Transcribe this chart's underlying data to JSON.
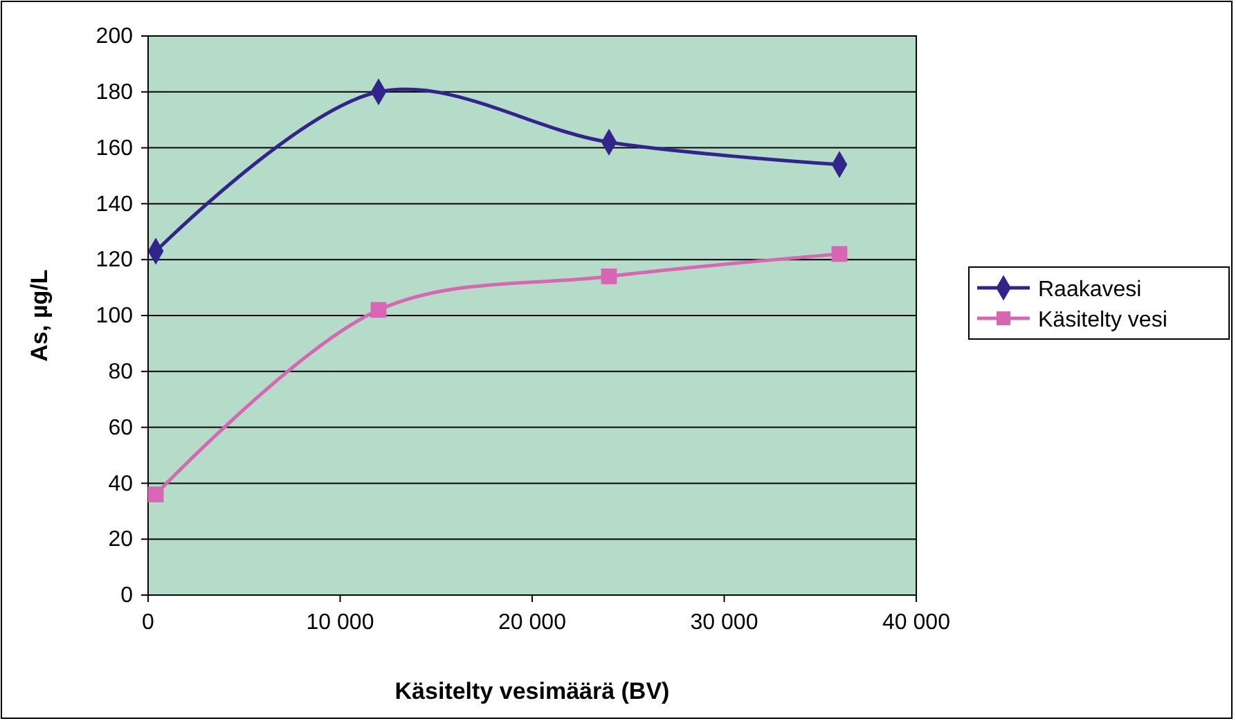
{
  "chart_data": {
    "type": "line",
    "xlabel": "Käsitelty vesimäärä (BV)",
    "ylabel": "As, µg/L",
    "xlim": [
      0,
      40000
    ],
    "xticks": [
      0,
      {
        "value": 10000,
        "label": "10 000"
      },
      {
        "value": 20000,
        "label": "20 000"
      },
      {
        "value": 30000,
        "label": "30 000"
      },
      {
        "value": 40000,
        "label": "40 000"
      }
    ],
    "ylim": [
      0,
      200
    ],
    "yticks": [
      0,
      20,
      40,
      60,
      80,
      100,
      120,
      140,
      160,
      180,
      200
    ],
    "grid": "y",
    "legend": "right",
    "line_style": "solid",
    "series": [
      {
        "name": "Raakavesi",
        "color": "#33238c",
        "marker": "diamond",
        "x": [
          400,
          12000,
          24000,
          36000
        ],
        "values": [
          123,
          180,
          162,
          154
        ]
      },
      {
        "name": "Käsitelty vesi",
        "color": "#d966b4",
        "marker": "square",
        "x": [
          400,
          12000,
          24000,
          36000
        ],
        "values": [
          36,
          102,
          114,
          122
        ]
      }
    ]
  }
}
